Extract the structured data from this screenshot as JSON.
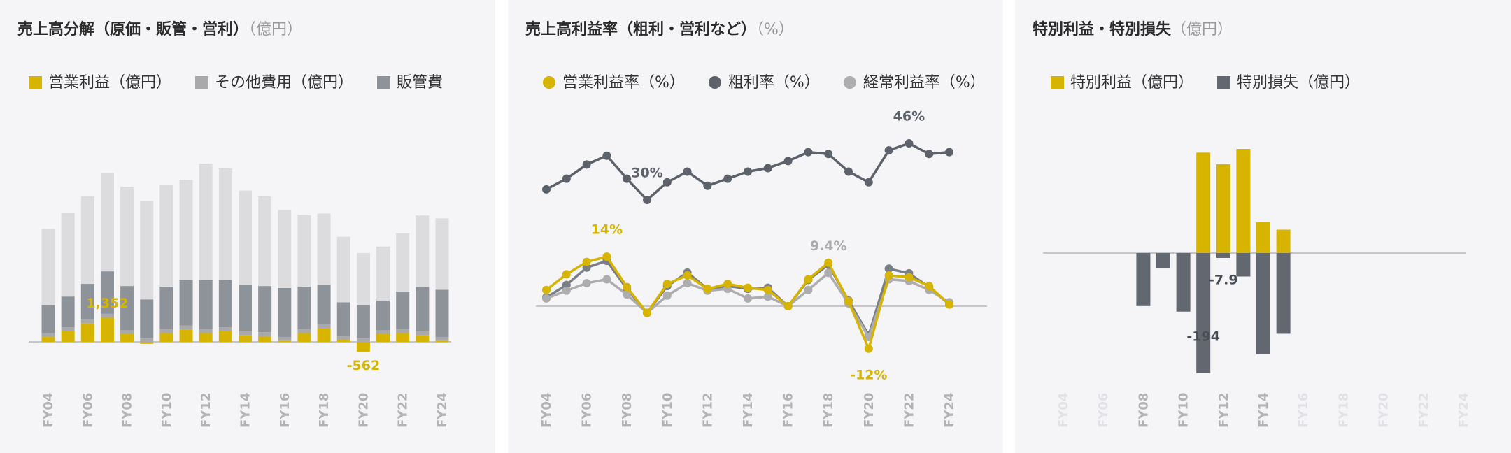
{
  "chart_data": [
    {
      "type": "bar",
      "stacked": true,
      "title": "売上高分解（原価・販管・営利）",
      "unit": "（億円）",
      "categories": [
        "FY04",
        null,
        "FY06",
        null,
        "FY08",
        null,
        "FY10",
        null,
        "FY12",
        null,
        "FY14",
        null,
        "FY16",
        null,
        "FY18",
        null,
        "FY20",
        null,
        "FY22",
        null,
        "FY24"
      ],
      "series": [
        {
          "name": "営業利益（億円）",
          "color": "#d6b400",
          "values": [
            270,
            590,
            1030,
            1352,
            430,
            -110,
            490,
            700,
            490,
            590,
            380,
            320,
            50,
            490,
            760,
            110,
            -562,
            430,
            490,
            380,
            50
          ],
          "value_labels": [
            null,
            null,
            null,
            "1,352",
            null,
            null,
            null,
            null,
            null,
            null,
            null,
            null,
            null,
            null,
            null,
            null,
            "-562",
            null,
            null,
            null,
            null
          ]
        },
        {
          "name": "その他費用（億円）",
          "color": "#a9a9ab",
          "values": [
            220,
            220,
            220,
            220,
            220,
            220,
            220,
            220,
            220,
            220,
            220,
            220,
            220,
            220,
            220,
            220,
            220,
            220,
            220,
            220,
            220
          ]
        },
        {
          "name": "販管費",
          "color": "#8e9299",
          "values": [
            1570,
            1730,
            2000,
            2380,
            2480,
            2160,
            2380,
            2540,
            2750,
            2650,
            2590,
            2590,
            2750,
            2380,
            2210,
            1890,
            1840,
            1670,
            2110,
            2480,
            2650
          ]
        },
        {
          "color": "#dcdcde",
          "values": [
            4270,
            4700,
            4910,
            5510,
            5560,
            5510,
            5720,
            5620,
            6530,
            6260,
            5290,
            5020,
            4370,
            4000,
            4000,
            3670,
            2920,
            3020,
            3290,
            4000,
            4000
          ]
        }
      ]
    },
    {
      "type": "line",
      "title": "売上高利益率（粗利・営利など）",
      "unit": "（%）",
      "categories": [
        "FY04",
        null,
        "FY06",
        null,
        "FY08",
        null,
        "FY10",
        null,
        "FY12",
        null,
        "FY14",
        null,
        "FY16",
        null,
        "FY18",
        null,
        "FY20",
        null,
        "FY22",
        null,
        "FY24"
      ],
      "series": [
        {
          "name": "営業利益率（%）",
          "color": "#d6b400",
          "values": [
            4.6,
            9,
            12.5,
            14,
            5.4,
            -1.9,
            6.3,
            8.7,
            4.9,
            6.3,
            5.2,
            4.6,
            0,
            7.6,
            12.3,
            1.4,
            -12,
            8.7,
            8.2,
            5.7,
            0.5
          ],
          "value_labels": [
            null,
            null,
            null,
            "14%",
            null,
            null,
            null,
            null,
            null,
            null,
            null,
            null,
            null,
            null,
            null,
            null,
            "-12%",
            null,
            null,
            null,
            null
          ]
        },
        {
          "name": "粗利率（%）",
          "color": "#5c616a",
          "values": [
            33,
            36,
            40,
            42.5,
            36,
            30,
            35,
            38,
            34,
            36,
            38,
            39,
            41,
            43.5,
            43,
            38,
            35,
            44,
            46,
            43,
            43.5
          ],
          "value_labels": [
            null,
            null,
            null,
            null,
            null,
            "30%",
            null,
            null,
            null,
            null,
            null,
            null,
            null,
            null,
            null,
            null,
            null,
            null,
            "46%",
            null,
            null
          ]
        },
        {
          "name": "経常利益率（%）",
          "color": "#adadb0",
          "values": [
            2.2,
            4.4,
            6.5,
            7.6,
            3.3,
            -1.9,
            3,
            6.5,
            4.4,
            4.9,
            2.2,
            2.7,
            0,
            4.6,
            9.4,
            0.8,
            -8.7,
            7.6,
            7.1,
            4.6,
            1.1
          ],
          "value_labels": [
            null,
            null,
            null,
            null,
            null,
            null,
            null,
            null,
            null,
            null,
            null,
            null,
            null,
            null,
            "9.4%",
            null,
            null,
            null,
            null,
            null,
            null
          ]
        },
        {
          "color": "#7a7e86",
          "values": [
            2.5,
            6,
            10.9,
            12.8,
            4.9,
            -1.9,
            5.7,
            9.5,
            4.9,
            5.7,
            4.9,
            5.2,
            0,
            7.4,
            11.7,
            1.6,
            -8.2,
            10.6,
            9.3,
            5.4,
            0.5
          ]
        }
      ]
    },
    {
      "type": "bar",
      "stacked": true,
      "title": "特別利益・特別損失",
      "unit": "（億円）",
      "categories": [
        "FY04",
        null,
        "FY06",
        null,
        "FY08",
        null,
        "FY10",
        null,
        "FY12",
        null,
        "FY14",
        null,
        "FY16",
        null,
        "FY18",
        null,
        "FY20",
        null,
        "FY22",
        null,
        "FY24"
      ],
      "series": [
        {
          "name": "特別利益（億円）",
          "color": "#d6b400",
          "values": [
            null,
            null,
            null,
            null,
            null,
            null,
            null,
            163,
            144,
            169,
            50,
            38,
            null,
            null,
            null,
            null,
            null,
            null,
            null,
            null,
            null
          ]
        },
        {
          "name": "特別損失（億円）",
          "color": "#626770",
          "values": [
            null,
            null,
            null,
            null,
            -86,
            -25,
            -95,
            -194,
            -7.9,
            -38,
            -164,
            -131,
            null,
            null,
            null,
            null,
            null,
            null,
            null,
            null,
            null
          ],
          "value_labels": [
            null,
            null,
            null,
            null,
            null,
            null,
            null,
            "-194",
            "-7.9",
            null,
            null,
            null,
            null,
            null,
            null,
            null,
            null,
            null,
            null,
            null,
            null
          ]
        }
      ]
    }
  ]
}
